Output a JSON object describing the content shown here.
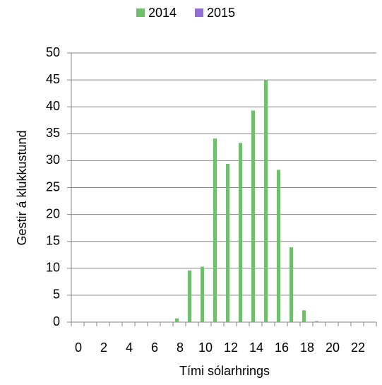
{
  "chart_data": {
    "type": "bar",
    "x_label": "Tími sólarhrings",
    "y_label": "Gestir á klukkustund",
    "categories": [
      "0",
      null,
      "2",
      null,
      "4",
      null,
      "6",
      null,
      "8",
      null,
      "10",
      null,
      "12",
      null,
      "14",
      null,
      "16",
      null,
      "18",
      null,
      "20",
      null,
      "22",
      null
    ],
    "series": [
      {
        "name": "2014",
        "color": "#70bf6c",
        "values": [
          0,
          0,
          0,
          0,
          0,
          0,
          0,
          0,
          0.7,
          9.6,
          10.3,
          34.1,
          29.4,
          33.3,
          39.3,
          45,
          28.3,
          13.9,
          2.2,
          0.2,
          0,
          0,
          0,
          0
        ]
      },
      {
        "name": "2015",
        "color": "#9370d0",
        "values": [
          0,
          0,
          0,
          0,
          0,
          0,
          0,
          0,
          0,
          0,
          0,
          0,
          0,
          0,
          0,
          0,
          0,
          0,
          0,
          0,
          0,
          0,
          0,
          0
        ]
      }
    ],
    "ylim": [
      0,
      50
    ],
    "yticks": [
      0,
      5,
      10,
      15,
      20,
      25,
      30,
      35,
      40,
      45,
      50
    ],
    "grid": true,
    "legend": "top"
  }
}
